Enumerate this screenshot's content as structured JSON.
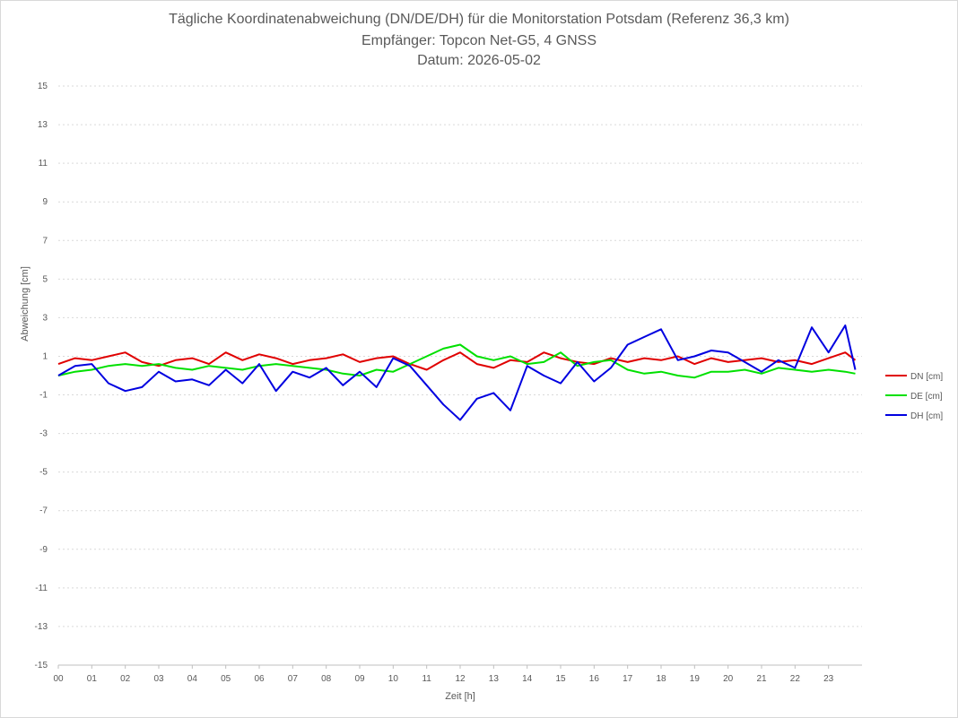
{
  "chart_data": {
    "type": "line",
    "title": "Tägliche Koordinatenabweichung (DN/DE/DH) für die Monitorstation Potsdam (Referenz 36,3 km)",
    "subtitle": "Empfänger: Topcon Net-G5, 4 GNSS",
    "date_line": "Datum: 2026-05-02",
    "xlabel": "Zeit [h]",
    "ylabel": "Abweichung [cm]",
    "xlim": [
      0,
      24
    ],
    "ylim": [
      -15,
      15
    ],
    "x_tick_labels": [
      "00",
      "01",
      "02",
      "03",
      "04",
      "05",
      "06",
      "07",
      "08",
      "09",
      "10",
      "11",
      "12",
      "13",
      "14",
      "15",
      "16",
      "17",
      "18",
      "19",
      "20",
      "21",
      "22",
      "23"
    ],
    "y_ticks": [
      15,
      13,
      11,
      9,
      7,
      5,
      3,
      1,
      -1,
      -3,
      -5,
      -7,
      -9,
      -11,
      -13,
      -15
    ],
    "grid": "horizontal dashed",
    "legend_position": "right",
    "x_hours": [
      0,
      0.5,
      1,
      1.5,
      2,
      2.5,
      3,
      3.5,
      4,
      4.5,
      5,
      5.5,
      6,
      6.5,
      7,
      7.5,
      8,
      8.5,
      9,
      9.5,
      10,
      10.5,
      11,
      11.5,
      12,
      12.5,
      13,
      13.5,
      14,
      14.5,
      15,
      15.5,
      16,
      16.5,
      17,
      17.5,
      18,
      18.5,
      19,
      19.5,
      20,
      20.5,
      21,
      21.5,
      22,
      22.5,
      23,
      23.5,
      23.8
    ],
    "series": [
      {
        "name": "DN [cm]",
        "color": "#e00000",
        "values": [
          0.6,
          0.9,
          0.8,
          1.0,
          1.2,
          0.7,
          0.5,
          0.8,
          0.9,
          0.6,
          1.2,
          0.8,
          1.1,
          0.9,
          0.6,
          0.8,
          0.9,
          1.1,
          0.7,
          0.9,
          1.0,
          0.6,
          0.3,
          0.8,
          1.2,
          0.6,
          0.4,
          0.8,
          0.7,
          1.2,
          0.9,
          0.7,
          0.6,
          0.9,
          0.7,
          0.9,
          0.8,
          1.0,
          0.6,
          0.9,
          0.7,
          0.8,
          0.9,
          0.7,
          0.8,
          0.6,
          0.9,
          1.2,
          0.8
        ]
      },
      {
        "name": "DE [cm]",
        "color": "#00e000",
        "values": [
          0.0,
          0.2,
          0.3,
          0.5,
          0.6,
          0.5,
          0.6,
          0.4,
          0.3,
          0.5,
          0.4,
          0.3,
          0.5,
          0.6,
          0.5,
          0.4,
          0.3,
          0.1,
          0.0,
          0.3,
          0.2,
          0.6,
          1.0,
          1.4,
          1.6,
          1.0,
          0.8,
          1.0,
          0.6,
          0.7,
          1.2,
          0.5,
          0.7,
          0.8,
          0.3,
          0.1,
          0.2,
          0.0,
          -0.1,
          0.2,
          0.2,
          0.3,
          0.1,
          0.4,
          0.3,
          0.2,
          0.3,
          0.2,
          0.1
        ]
      },
      {
        "name": "DH [cm]",
        "color": "#0000e0",
        "values": [
          0.0,
          0.5,
          0.6,
          -0.4,
          -0.8,
          -0.6,
          0.2,
          -0.3,
          -0.2,
          -0.5,
          0.3,
          -0.4,
          0.6,
          -0.8,
          0.2,
          -0.1,
          0.4,
          -0.5,
          0.2,
          -0.6,
          0.9,
          0.5,
          -0.5,
          -1.5,
          -2.3,
          -1.2,
          -0.9,
          -1.8,
          0.5,
          0.0,
          -0.4,
          0.7,
          -0.3,
          0.4,
          1.6,
          2.0,
          2.4,
          0.8,
          1.0,
          1.3,
          1.2,
          0.7,
          0.2,
          0.8,
          0.4,
          2.5,
          1.2,
          2.6,
          0.3
        ]
      }
    ]
  }
}
